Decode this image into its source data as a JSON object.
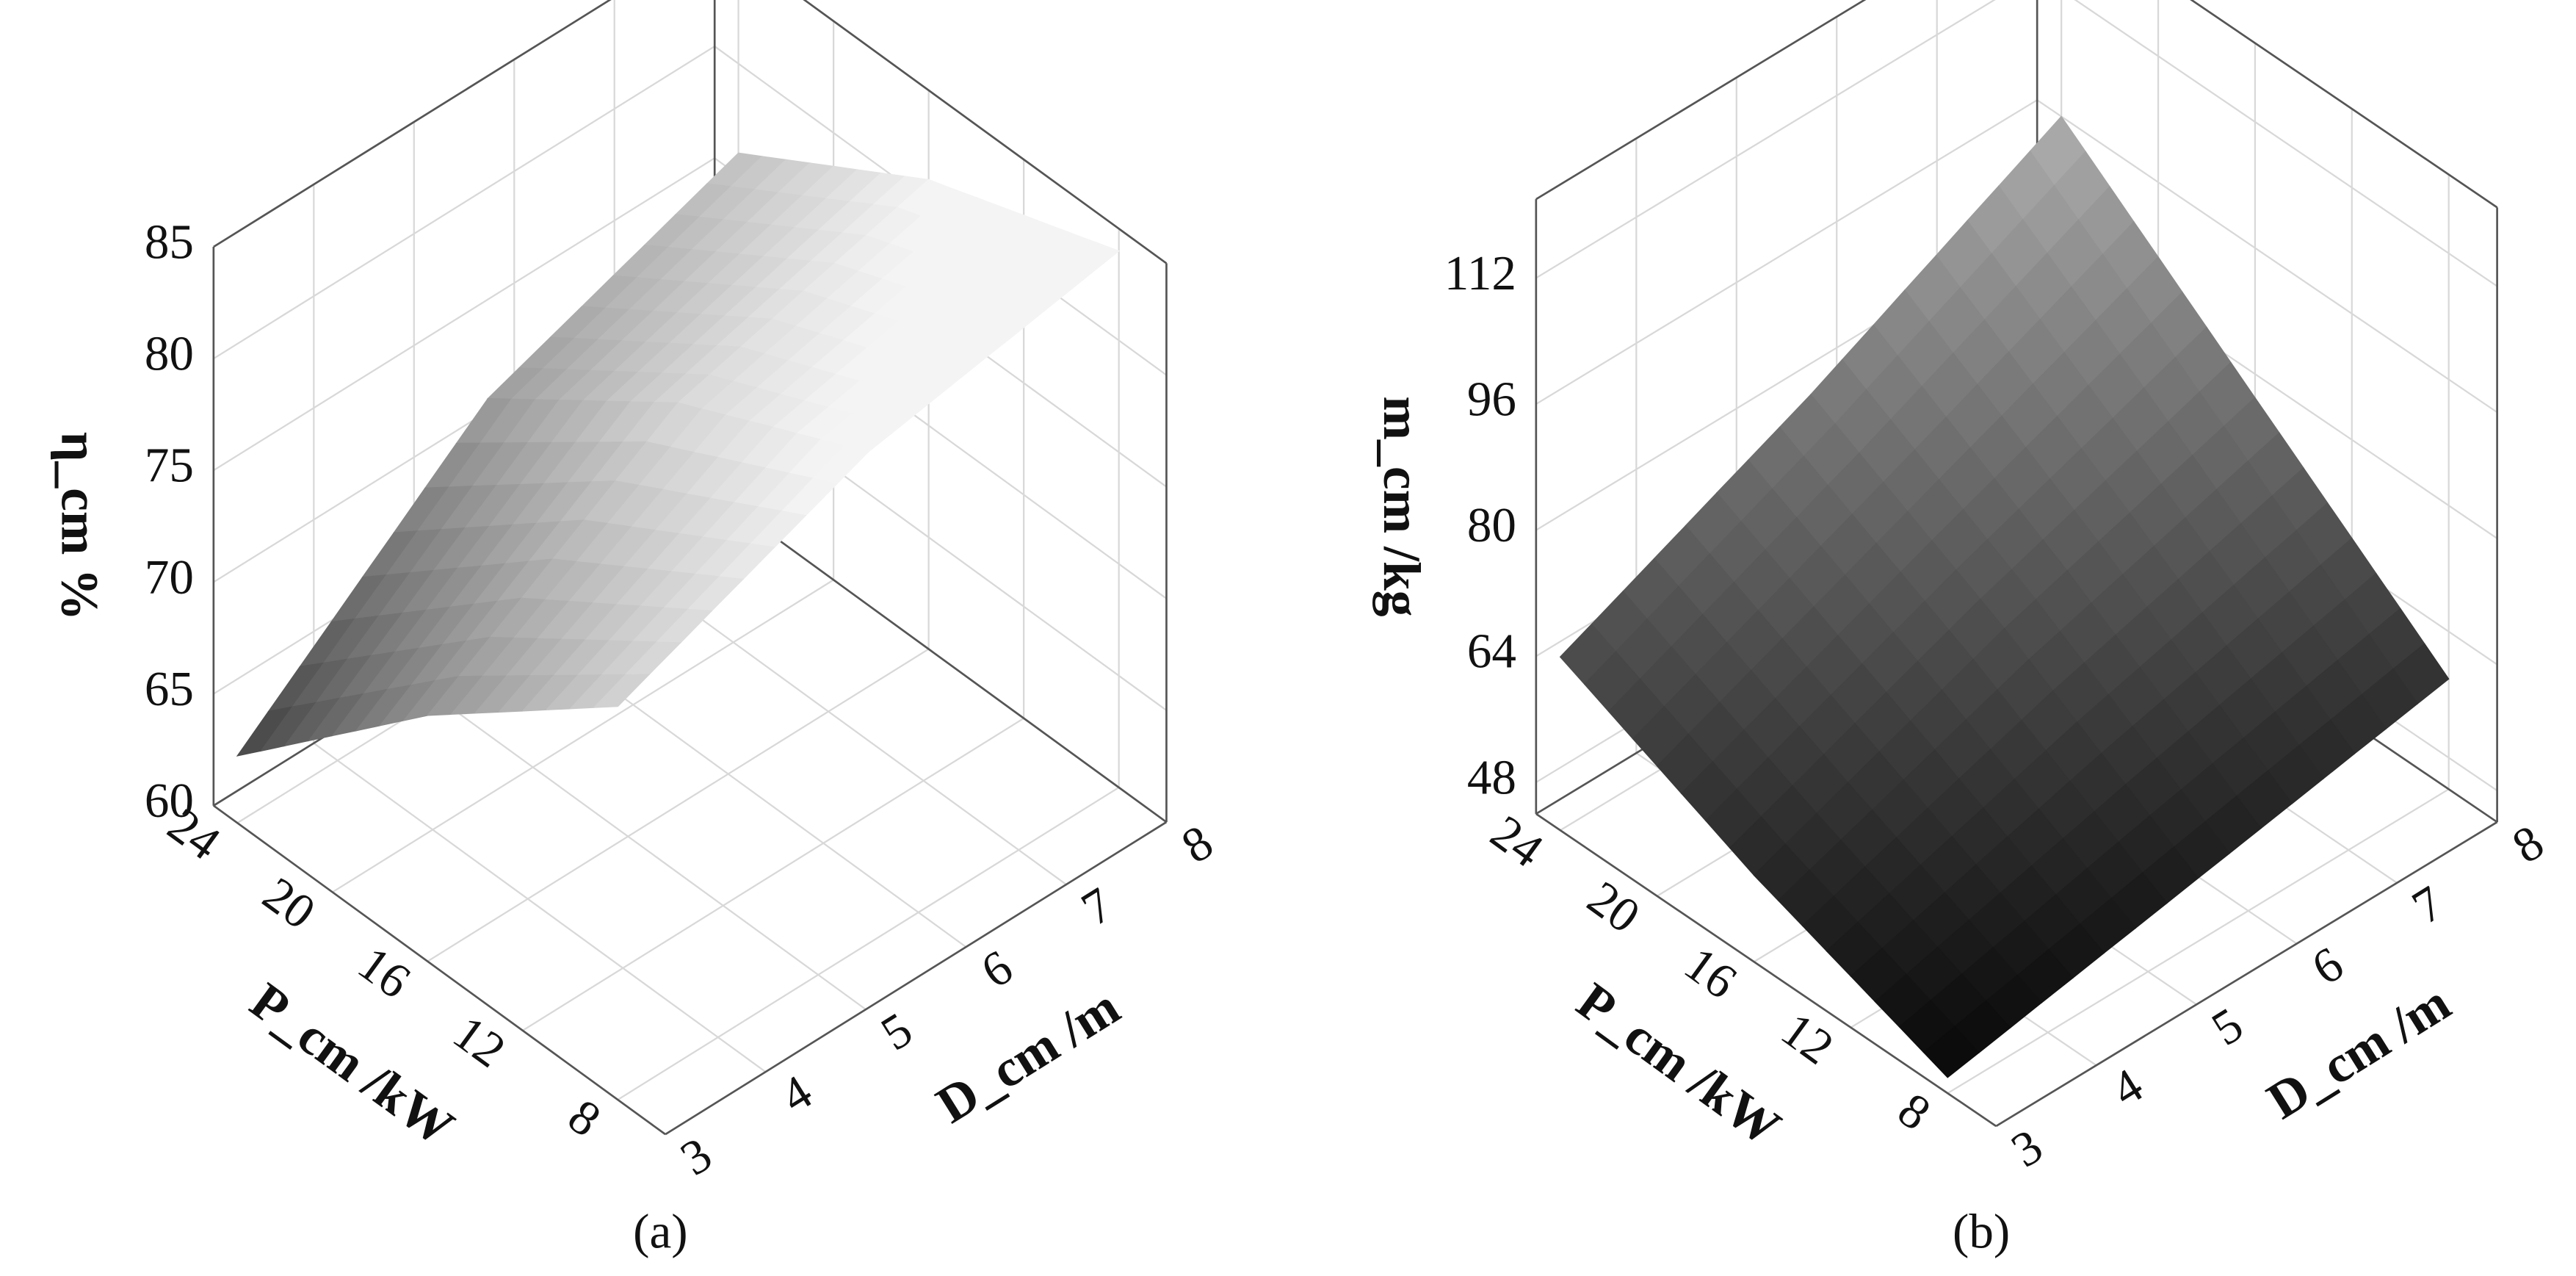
{
  "chart_data": [
    {
      "type": "surface",
      "caption": "(a)",
      "xlabel": "D_cm /m",
      "ylabel": "P_cm /kW",
      "zlabel": "η_cm %",
      "x": [
        3,
        5.5,
        8
      ],
      "y": [
        8,
        16,
        24
      ],
      "z": [
        [
          77.6,
          82,
          84
        ],
        [
          71,
          78,
          81
        ],
        [
          63,
          72,
          76
        ]
      ],
      "xlim": [
        3,
        8
      ],
      "ylim": [
        6,
        25
      ],
      "zlim": [
        60,
        85
      ],
      "xticks": [
        3,
        4,
        5,
        6,
        7,
        8
      ],
      "yticks": [
        8,
        12,
        16,
        20,
        24
      ],
      "zticks": [
        60,
        65,
        70,
        75,
        80,
        85
      ],
      "colormap": [
        "#2e2e2e",
        "#f4f4f4"
      ],
      "grid": true
    },
    {
      "type": "surface",
      "caption": "(b)",
      "xlabel": "D_cm /m",
      "ylabel": "P_cm /kW",
      "zlabel": "m_cm /kg",
      "x": [
        3,
        5.5,
        8
      ],
      "y": [
        8,
        16,
        24
      ],
      "z": [
        [
          46,
          52,
          58
        ],
        [
          55,
          67,
          77
        ],
        [
          66,
          80,
          96
        ]
      ],
      "xlim": [
        3,
        8
      ],
      "ylim": [
        6,
        25
      ],
      "zlim": [
        44,
        122
      ],
      "xticks": [
        3,
        4,
        5,
        6,
        7,
        8
      ],
      "yticks": [
        8,
        12,
        16,
        20,
        24
      ],
      "zticks": [
        48,
        64,
        80,
        96,
        112
      ],
      "colormap": [
        "#0c0c0c",
        "#dcdcdc"
      ],
      "grid": true
    }
  ]
}
